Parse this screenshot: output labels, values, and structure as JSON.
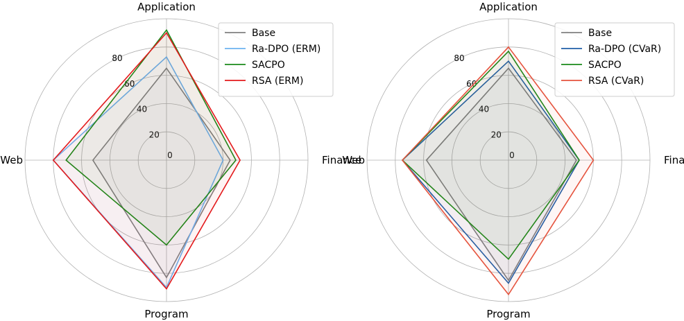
{
  "chart_data": [
    {
      "type": "radar",
      "axes": [
        "Application",
        "Finance",
        "Program",
        "Web"
      ],
      "rlim": [
        0,
        100
      ],
      "rticks": [
        0,
        20,
        40,
        60,
        80
      ],
      "grid": true,
      "legend_position": "top-right",
      "series": [
        {
          "name": "Base",
          "color": "#808080",
          "values": [
            65,
            45,
            83,
            52
          ]
        },
        {
          "name": "Ra-DPO (ERM)",
          "color": "#6cb2f0",
          "values": [
            73,
            40,
            90,
            80
          ]
        },
        {
          "name": "SACPO",
          "color": "#1a8a1a",
          "values": [
            92,
            49,
            60,
            71
          ]
        },
        {
          "name": "RSA (ERM)",
          "color": "#e31a1c",
          "values": [
            90,
            52,
            91,
            80
          ]
        }
      ]
    },
    {
      "type": "radar",
      "axes": [
        "Application",
        "Finance",
        "Program",
        "Web"
      ],
      "rlim": [
        0,
        100
      ],
      "rticks": [
        0,
        20,
        40,
        60,
        80
      ],
      "grid": true,
      "legend_position": "top-right",
      "series": [
        {
          "name": "Base",
          "color": "#808080",
          "values": [
            65,
            48,
            85,
            58
          ]
        },
        {
          "name": "Ra-DPO (CVaR)",
          "color": "#1f5fa8",
          "values": [
            70,
            50,
            87,
            75
          ]
        },
        {
          "name": "SACPO",
          "color": "#1a8a1a",
          "values": [
            77,
            50,
            70,
            75
          ]
        },
        {
          "name": "RSA (CVaR)",
          "color": "#e5533d",
          "values": [
            80,
            60,
            95,
            75
          ]
        }
      ]
    }
  ]
}
